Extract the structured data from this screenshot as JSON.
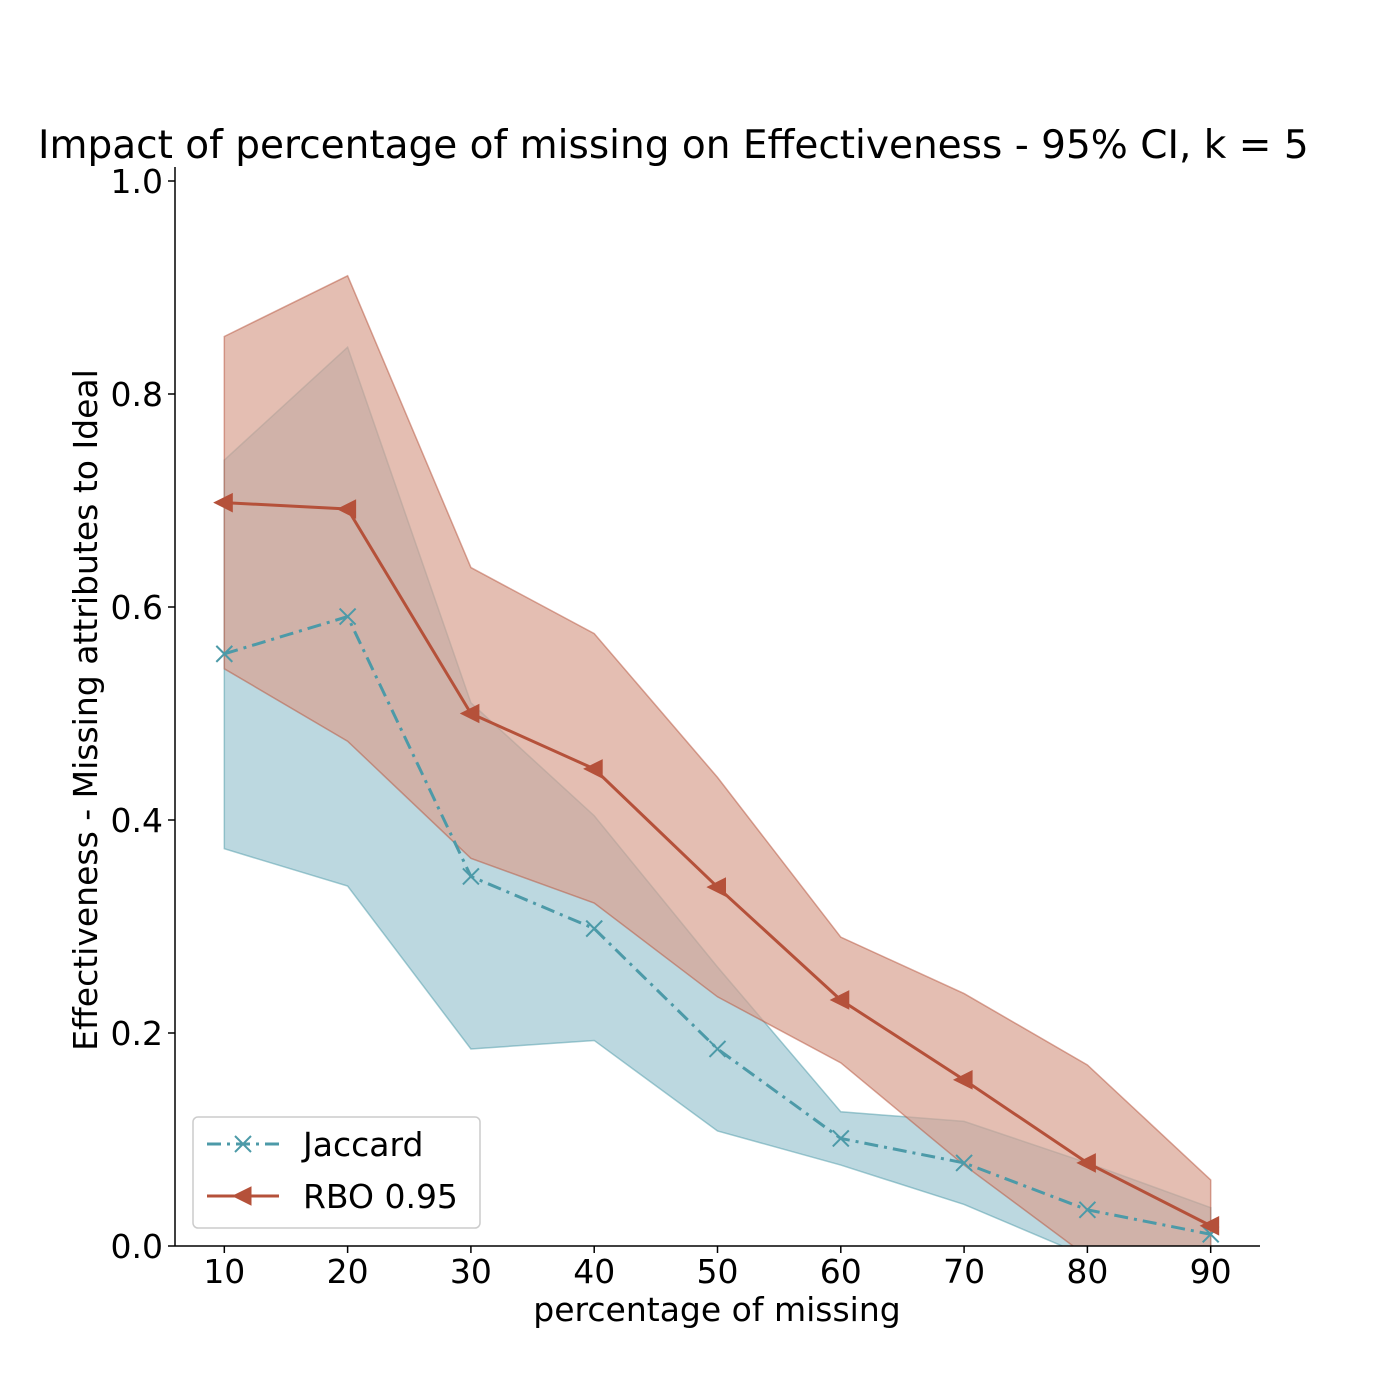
{
  "chart_data": {
    "type": "line",
    "title": "Impact of percentage of missing on Effectiveness - 95% CI, k = 5",
    "xlabel": "percentage of missing",
    "ylabel": "Effectiveness - Missing attributes to Ideal",
    "x": [
      10,
      20,
      30,
      40,
      50,
      60,
      70,
      80,
      90
    ],
    "x_ticks": [
      "10",
      "20",
      "30",
      "40",
      "50",
      "60",
      "70",
      "80",
      "90"
    ],
    "xlim": [
      6,
      94
    ],
    "y_ticks": [
      "0.0",
      "0.2",
      "0.4",
      "0.6",
      "0.8",
      "1.0"
    ],
    "ylim": [
      0,
      1.0
    ],
    "grid": false,
    "legend_position": "lower-left",
    "series": [
      {
        "name": "Jaccard",
        "color": "#4c9aa8",
        "band_color": "#9fc8d3",
        "line_style": "dash-dot",
        "marker": "x",
        "values": [
          0.556,
          0.591,
          0.347,
          0.298,
          0.185,
          0.101,
          0.078,
          0.034,
          0.011
        ],
        "ci_low": [
          0.373,
          0.338,
          0.185,
          0.193,
          0.108,
          0.076,
          0.039,
          -0.01,
          -0.01
        ],
        "ci_high": [
          0.738,
          0.844,
          0.51,
          0.404,
          0.262,
          0.126,
          0.117,
          0.078,
          0.036
        ]
      },
      {
        "name": "RBO 0.95",
        "color": "#b5513a",
        "band_color": "#d9a292",
        "line_style": "solid",
        "marker": "triangle-left",
        "values": [
          0.698,
          0.692,
          0.5,
          0.448,
          0.337,
          0.231,
          0.156,
          0.078,
          0.019
        ],
        "ci_low": [
          0.542,
          0.474,
          0.364,
          0.322,
          0.234,
          0.172,
          0.076,
          -0.01,
          -0.01
        ],
        "ci_high": [
          0.854,
          0.911,
          0.637,
          0.575,
          0.44,
          0.29,
          0.237,
          0.17,
          0.062
        ]
      }
    ]
  }
}
